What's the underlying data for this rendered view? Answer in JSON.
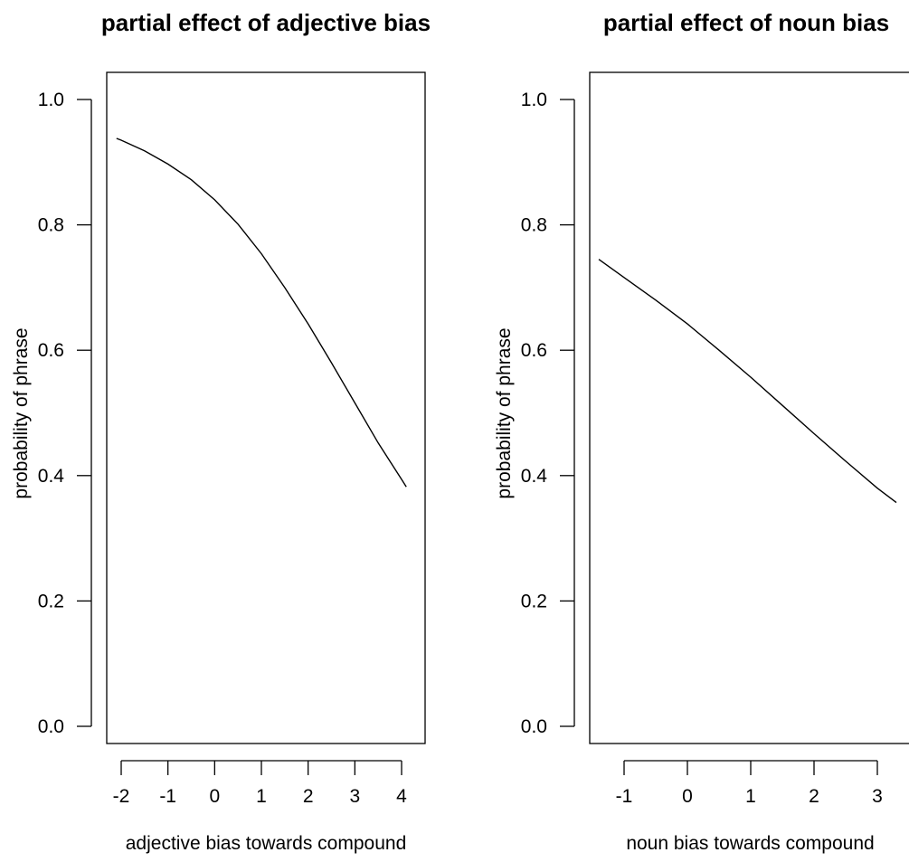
{
  "chart_data": [
    {
      "type": "line",
      "title": "partial effect of adjective bias",
      "xlabel": "adjective bias towards compound",
      "ylabel": "probability of phrase",
      "xticks": [
        "-2",
        "-1",
        "0",
        "1",
        "2",
        "3",
        "4"
      ],
      "yticks": [
        "0.0",
        "0.2",
        "0.4",
        "0.6",
        "0.8",
        "1.0"
      ],
      "xlim": [
        -2.2,
        4.2
      ],
      "ylim": [
        0.0,
        1.0
      ],
      "grid": false,
      "series": [
        {
          "x": [
            -2.1,
            -2.0,
            -1.5,
            -1.0,
            -0.5,
            0.0,
            0.5,
            1.0,
            1.5,
            2.0,
            2.5,
            3.0,
            3.5,
            4.0,
            4.1
          ],
          "y": [
            0.938,
            0.935,
            0.918,
            0.897,
            0.872,
            0.84,
            0.801,
            0.754,
            0.7,
            0.642,
            0.58,
            0.516,
            0.452,
            0.394,
            0.382
          ]
        }
      ]
    },
    {
      "type": "line",
      "title": "partial effect of noun bias",
      "xlabel": "noun bias towards compound",
      "ylabel": "probability of phrase",
      "xticks": [
        "-1",
        "0",
        "1",
        "2",
        "3"
      ],
      "yticks": [
        "0.0",
        "0.2",
        "0.4",
        "0.6",
        "0.8",
        "1.0"
      ],
      "xlim": [
        -1.4,
        3.3
      ],
      "ylim": [
        0.0,
        1.0
      ],
      "grid": false,
      "series": [
        {
          "x": [
            -1.4,
            -1.0,
            -0.5,
            0.0,
            0.5,
            1.0,
            1.5,
            2.0,
            2.5,
            3.0,
            3.3
          ],
          "y": [
            0.745,
            0.716,
            0.68,
            0.642,
            0.6,
            0.557,
            0.512,
            0.467,
            0.423,
            0.38,
            0.357
          ]
        }
      ]
    }
  ]
}
